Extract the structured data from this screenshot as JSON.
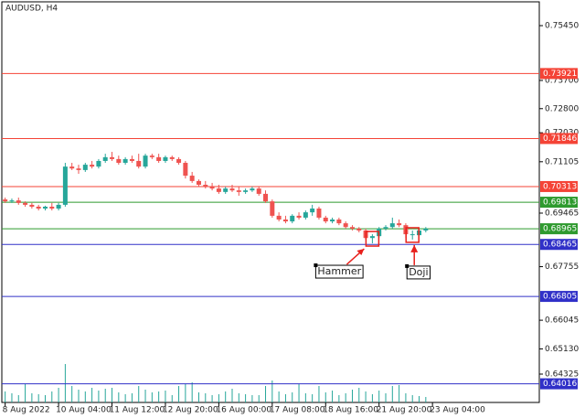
{
  "chart_data": {
    "type": "candlestick",
    "title": "AUDUSD, H4",
    "open": [
      0.699,
      0.6984,
      0.6987,
      0.6979,
      0.6973,
      0.6967,
      0.6961,
      0.6967,
      0.6961,
      0.6973,
      0.7095,
      0.7089,
      0.7084,
      0.7101,
      0.7095,
      0.7113,
      0.7125,
      0.7119,
      0.7107,
      0.7119,
      0.7113,
      0.7095,
      0.713,
      0.7125,
      0.7113,
      0.7125,
      0.7119,
      0.7107,
      0.7066,
      0.7049,
      0.7037,
      0.7031,
      0.7025,
      0.7014,
      0.7025,
      0.7019,
      0.7014,
      0.7019,
      0.7025,
      0.7008,
      0.6984,
      0.6938,
      0.6926,
      0.692,
      0.6938,
      0.6932,
      0.6949,
      0.6961,
      0.6932,
      0.692,
      0.6926,
      0.6914,
      0.6902,
      0.6897,
      0.6891,
      0.6867,
      0.6873,
      0.6897,
      0.6902,
      0.6914,
      0.6908,
      0.6879,
      0.6876,
      0.6891
    ],
    "high": [
      0.6996,
      0.6993,
      0.6996,
      0.6984,
      0.6979,
      0.6973,
      0.697,
      0.6979,
      0.6979,
      0.7107,
      0.7107,
      0.7101,
      0.7107,
      0.7113,
      0.7119,
      0.7136,
      0.7142,
      0.713,
      0.7125,
      0.713,
      0.7136,
      0.7136,
      0.7136,
      0.7136,
      0.713,
      0.713,
      0.7125,
      0.7113,
      0.7078,
      0.7054,
      0.7049,
      0.7043,
      0.7037,
      0.7031,
      0.7037,
      0.7031,
      0.7025,
      0.7031,
      0.7031,
      0.7019,
      0.699,
      0.6949,
      0.6938,
      0.6943,
      0.6949,
      0.6955,
      0.6973,
      0.6967,
      0.6938,
      0.6932,
      0.6932,
      0.692,
      0.6908,
      0.6902,
      0.6897,
      0.6879,
      0.6902,
      0.6908,
      0.6932,
      0.6926,
      0.6914,
      0.6891,
      0.6897,
      0.6902
    ],
    "low": [
      0.6979,
      0.6979,
      0.6973,
      0.6967,
      0.6961,
      0.6955,
      0.6955,
      0.6955,
      0.6955,
      0.6967,
      0.7084,
      0.7072,
      0.7078,
      0.7089,
      0.7089,
      0.7107,
      0.7113,
      0.7101,
      0.7101,
      0.7107,
      0.7089,
      0.7089,
      0.7119,
      0.7107,
      0.7107,
      0.7113,
      0.7101,
      0.7057,
      0.7043,
      0.7031,
      0.7025,
      0.7019,
      0.7008,
      0.7008,
      0.7014,
      0.7002,
      0.7008,
      0.7014,
      0.7002,
      0.6979,
      0.6932,
      0.692,
      0.6914,
      0.6914,
      0.6926,
      0.6926,
      0.6938,
      0.6926,
      0.6914,
      0.6914,
      0.6908,
      0.6897,
      0.6891,
      0.6885,
      0.6862,
      0.685,
      0.6867,
      0.6891,
      0.6897,
      0.6902,
      0.6867,
      0.6862,
      0.6873,
      0.6885
    ],
    "close": [
      0.6984,
      0.6987,
      0.6979,
      0.6973,
      0.6967,
      0.6961,
      0.6967,
      0.6961,
      0.6973,
      0.7095,
      0.7089,
      0.7084,
      0.7101,
      0.7095,
      0.7113,
      0.7125,
      0.7119,
      0.7107,
      0.7119,
      0.7113,
      0.7095,
      0.713,
      0.7125,
      0.7113,
      0.7125,
      0.7119,
      0.7107,
      0.7066,
      0.7049,
      0.7037,
      0.7031,
      0.7025,
      0.7014,
      0.7025,
      0.7019,
      0.7014,
      0.7019,
      0.7025,
      0.7008,
      0.6984,
      0.6938,
      0.6926,
      0.692,
      0.6938,
      0.6932,
      0.6949,
      0.6961,
      0.6932,
      0.692,
      0.6926,
      0.6914,
      0.6902,
      0.6897,
      0.6891,
      0.6867,
      0.6873,
      0.6897,
      0.6902,
      0.6914,
      0.6908,
      0.6879,
      0.6879,
      0.6891,
      0.6897
    ],
    "volumes": [
      6000,
      5000,
      4000,
      10000,
      5000,
      4500,
      4000,
      6000,
      8000,
      21000,
      9000,
      7000,
      6000,
      8000,
      6500,
      7500,
      8000,
      5500,
      4500,
      5000,
      9000,
      7000,
      5500,
      6000,
      6500,
      4000,
      9000,
      10000,
      11000,
      5500,
      5000,
      4000,
      4500,
      6000,
      7500,
      5000,
      4500,
      4000,
      4000,
      9000,
      12000,
      6000,
      4500,
      5500,
      10000,
      5000,
      4500,
      9000,
      5500,
      6500,
      4000,
      5000,
      7000,
      8000,
      6000,
      4500,
      6500,
      5000,
      9000,
      9500,
      5000,
      4000,
      3500,
      3000
    ],
    "up_color": "#26a69a",
    "down_color": "#ef5350",
    "volume_color": "#26a69a",
    "xlim": [
      -0.5,
      80
    ],
    "xticks": [
      {
        "value": 0,
        "label": "8 Aug 2022"
      },
      {
        "value": 8,
        "label": "10 Aug 04:00"
      },
      {
        "value": 16,
        "label": "11 Aug 12:00"
      },
      {
        "value": 24,
        "label": "12 Aug 20:00"
      },
      {
        "value": 32,
        "label": "16 Aug 00:00"
      },
      {
        "value": 40,
        "label": "17 Aug 08:00"
      },
      {
        "value": 48,
        "label": "18 Aug 16:00"
      },
      {
        "value": 56,
        "label": "21 Aug 20:00"
      },
      {
        "value": 64,
        "label": "23 Aug 04:00"
      }
    ],
    "ylim": [
      0.6342,
      0.7621
    ],
    "yticks": [
      {
        "value": 0.7545,
        "label": "0.75450"
      },
      {
        "value": 0.737,
        "label": "0.73700"
      },
      {
        "value": 0.728,
        "label": "0.72800"
      },
      {
        "value": 0.7203,
        "label": "0.72030"
      },
      0.71105,
      0.69465,
      0.67755,
      0.66045,
      {
        "value": 0.6513,
        "label": "0.65130"
      },
      0.64325
    ],
    "levels": [
      {
        "value": 0.73921,
        "color": "#f44336"
      },
      {
        "value": 0.71846,
        "color": "#f44336"
      },
      {
        "value": 0.70313,
        "color": "#f44336"
      },
      {
        "value": 0.69813,
        "color": "#2e9a2e"
      },
      {
        "value": 0.68965,
        "color": "#2e9a2e"
      },
      {
        "value": 0.68465,
        "color": "#3030c8"
      },
      {
        "value": 0.66805,
        "color": "#3030c8"
      },
      {
        "value": 0.64016,
        "color": "#3030c8"
      }
    ],
    "patterns": [
      {
        "label": "Hammer",
        "index": 55
      },
      {
        "label": "Doji",
        "index": 61
      }
    ],
    "pattern_color": "#e8201c"
  }
}
